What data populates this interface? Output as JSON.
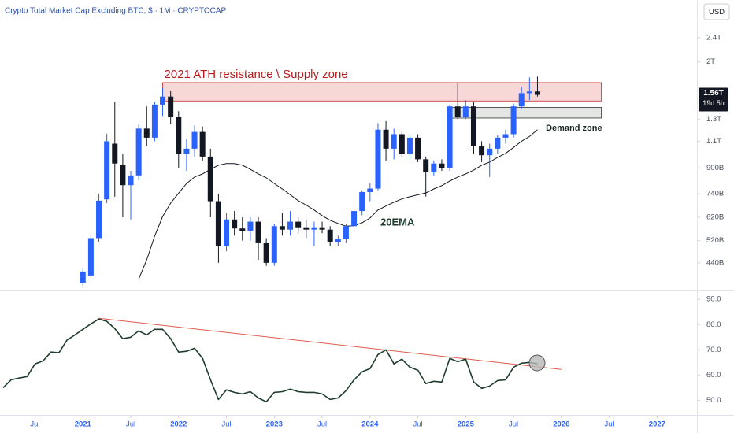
{
  "chart_data": [
    {
      "type": "candlestick",
      "title": "Crypto Total Market Cap Excluding BTC, $ · 1M · CRYPTOCAP",
      "currency": "USD",
      "log_scale": true,
      "up_color": "#2962ff",
      "down_color": "#131722",
      "x": [
        "2021-01",
        "2021-02",
        "2021-03",
        "2021-04",
        "2021-05",
        "2021-06",
        "2021-07",
        "2021-08",
        "2021-09",
        "2021-10",
        "2021-11",
        "2021-12",
        "2022-01",
        "2022-02",
        "2022-03",
        "2022-04",
        "2022-05",
        "2022-06",
        "2022-07",
        "2022-08",
        "2022-09",
        "2022-10",
        "2022-11",
        "2022-12",
        "2023-01",
        "2023-02",
        "2023-03",
        "2023-04",
        "2023-05",
        "2023-06",
        "2023-07",
        "2023-08",
        "2023-09",
        "2023-10",
        "2023-11",
        "2023-12",
        "2024-01",
        "2024-02",
        "2024-03",
        "2024-04",
        "2024-05",
        "2024-06",
        "2024-07",
        "2024-08",
        "2024-09",
        "2024-10",
        "2024-11",
        "2024-12",
        "2025-01",
        "2025-02",
        "2025-03",
        "2025-04",
        "2025-05",
        "2025-06",
        "2025-07",
        "2025-08",
        "2025-09",
        "2025-10"
      ],
      "open": [
        378,
        400,
        530,
        710,
        1080,
        918,
        790,
        850,
        1210,
        1130,
        1450,
        1540,
        1320,
        1000,
        1040,
        1180,
        980,
        700,
        500,
        610,
        570,
        560,
        600,
        510,
        440,
        580,
        565,
        600,
        575,
        565,
        575,
        565,
        515,
        525,
        580,
        650,
        750,
        770,
        1200,
        1040,
        1160,
        1000,
        1130,
        960,
        870,
        930,
        900,
        1430,
        1320,
        1430,
        1060,
        990,
        1040,
        1130,
        1160,
        1430,
        1580,
        1600
      ],
      "high": [
        424,
        545,
        740,
        1164,
        1475,
        1000,
        880,
        1250,
        1430,
        1480,
        1640,
        1610,
        1380,
        1120,
        1240,
        1230,
        1040,
        740,
        640,
        650,
        620,
        620,
        620,
        530,
        590,
        640,
        650,
        620,
        610,
        600,
        600,
        580,
        540,
        590,
        660,
        760,
        800,
        1260,
        1280,
        1210,
        1190,
        1150,
        1160,
        980,
        950,
        960,
        1450,
        1700,
        1500,
        1480,
        1100,
        1080,
        1150,
        1200,
        1460,
        1660,
        1780,
        1790
      ],
      "low": [
        370,
        390,
        515,
        690,
        724,
        620,
        610,
        820,
        1060,
        1100,
        1330,
        1250,
        900,
        880,
        980,
        950,
        620,
        440,
        480,
        540,
        520,
        520,
        450,
        430,
        430,
        540,
        540,
        550,
        530,
        500,
        550,
        500,
        500,
        510,
        570,
        630,
        700,
        760,
        950,
        960,
        980,
        960,
        940,
        725,
        850,
        880,
        880,
        1300,
        1300,
        1000,
        940,
        840,
        1000,
        1080,
        1130,
        1400,
        1500,
        1540
      ],
      "close": [
        412,
        530,
        703,
        1100,
        930,
        790,
        850,
        1210,
        1130,
        1450,
        1540,
        1320,
        1000,
        1040,
        1180,
        980,
        700,
        500,
        610,
        570,
        560,
        600,
        510,
        440,
        580,
        565,
        600,
        575,
        565,
        575,
        565,
        515,
        525,
        580,
        650,
        750,
        770,
        1200,
        1040,
        1160,
        1000,
        1130,
        960,
        870,
        930,
        900,
        1430,
        1320,
        1430,
        1060,
        990,
        1040,
        1130,
        1160,
        1430,
        1580,
        1600,
        1560
      ],
      "ema": {
        "name": "20EMA",
        "color": "#131722",
        "values": [
          null,
          null,
          null,
          null,
          null,
          null,
          null,
          389,
          450,
          538,
          624,
          690,
          744,
          800,
          840,
          860,
          890,
          918,
          930,
          930,
          918,
          890,
          860,
          835,
          800,
          768,
          735,
          703,
          680,
          655,
          628,
          606,
          592,
          580,
          582,
          595,
          617,
          655,
          675,
          695,
          712,
          724,
          735,
          745,
          768,
          787,
          815,
          840,
          860,
          885,
          918,
          940,
          974,
          1004,
          1050,
          1100,
          1140,
          1200
        ]
      },
      "zones": [
        {
          "label": "2021 ATH resistance \\ Supply zone",
          "x": [
            "2021-11",
            "2026-06"
          ],
          "range": [
            1490,
            1711
          ],
          "color": "#f8d7d7",
          "border": "#c62828",
          "text_color": "#b71c1c"
        },
        {
          "label": "Demand zone",
          "x": [
            "2024-11",
            "2026-06"
          ],
          "range": [
            1310,
            1420
          ],
          "color": "#e4e6e4",
          "border": "#333333",
          "text_color": "#1b2a22"
        }
      ],
      "last_price": {
        "value": 1560,
        "label": "1.56T"
      },
      "countdown": "19d 5h",
      "ylim": [
        355,
        3190
      ],
      "yticks": [
        {
          "value": 2400,
          "label": "2.4T"
        },
        {
          "value": 2000,
          "label": "2T"
        },
        {
          "value": 1300,
          "label": "1.3T"
        },
        {
          "value": 1100,
          "label": "1.1T"
        },
        {
          "value": 900,
          "label": "900B"
        },
        {
          "value": 740,
          "label": "740B"
        },
        {
          "value": 620,
          "label": "620B"
        },
        {
          "value": 520,
          "label": "520B"
        },
        {
          "value": 440,
          "label": "440B"
        }
      ],
      "xlim": [
        "2020-03",
        "2027-06"
      ],
      "xticks": [
        {
          "value": "2020-07",
          "label": "Jul"
        },
        {
          "value": "2021-01",
          "label": "2021"
        },
        {
          "value": "2021-07",
          "label": "Jul"
        },
        {
          "value": "2022-01",
          "label": "2022"
        },
        {
          "value": "2022-07",
          "label": "Jul"
        },
        {
          "value": "2023-01",
          "label": "2023"
        },
        {
          "value": "2023-07",
          "label": "Jul"
        },
        {
          "value": "2024-01",
          "label": "2024"
        },
        {
          "value": "2024-07",
          "label": "Jul"
        },
        {
          "value": "2025-01",
          "label": "2025"
        },
        {
          "value": "2025-07",
          "label": "Jul"
        },
        {
          "value": "2026-01",
          "label": "2026"
        },
        {
          "value": "2026-07",
          "label": "Jul"
        },
        {
          "value": "2027-01",
          "label": "2027"
        }
      ]
    },
    {
      "type": "line",
      "color": "#1e3d2c",
      "x": [
        "2020-03",
        "2020-04",
        "2020-05",
        "2020-06",
        "2020-07",
        "2020-08",
        "2020-09",
        "2020-10",
        "2020-11",
        "2020-12",
        "2021-01",
        "2021-02",
        "2021-03",
        "2021-04",
        "2021-05",
        "2021-06",
        "2021-07",
        "2021-08",
        "2021-09",
        "2021-10",
        "2021-11",
        "2021-12",
        "2022-01",
        "2022-02",
        "2022-03",
        "2022-04",
        "2022-05",
        "2022-06",
        "2022-07",
        "2022-08",
        "2022-09",
        "2022-10",
        "2022-11",
        "2022-12",
        "2023-01",
        "2023-02",
        "2023-03",
        "2023-04",
        "2023-05",
        "2023-06",
        "2023-07",
        "2023-08",
        "2023-09",
        "2023-10",
        "2023-11",
        "2023-12",
        "2024-01",
        "2024-02",
        "2024-03",
        "2024-04",
        "2024-05",
        "2024-06",
        "2024-07",
        "2024-08",
        "2024-09",
        "2024-10",
        "2024-11",
        "2024-12",
        "2025-01",
        "2025-02",
        "2025-03",
        "2025-04",
        "2025-05",
        "2025-06",
        "2025-07",
        "2025-08",
        "2025-09",
        "2025-10"
      ],
      "values": [
        55,
        58.1,
        58.8,
        59.4,
        64.4,
        65.6,
        69.1,
        68.8,
        73.8,
        75.9,
        78.1,
        80.3,
        82.2,
        81.3,
        78.4,
        74.4,
        75,
        77.5,
        75.9,
        78.1,
        78.1,
        74.4,
        69.1,
        69.4,
        70.6,
        66.6,
        58.1,
        50.3,
        54.1,
        53.1,
        52.5,
        53.4,
        50.9,
        49.4,
        53.1,
        53.4,
        54.4,
        53.4,
        53.1,
        53.1,
        52.5,
        50.3,
        50.9,
        53.8,
        58.1,
        61.3,
        62.5,
        68.1,
        70,
        64.4,
        66.3,
        63.1,
        61.9,
        56.6,
        57.5,
        57.2,
        66.6,
        65.3,
        66.3,
        57.2,
        54.7,
        55.6,
        57.8,
        58.1,
        63.1,
        64.7,
        65,
        64.4
      ],
      "trendline": {
        "x": [
          "2021-03",
          "2026-01"
        ],
        "values": [
          82.5,
          62.2
        ],
        "color": "#e05a4f"
      },
      "ylim": [
        44.5,
        93.5
      ],
      "yticks": [
        {
          "value": 90,
          "label": "90.0"
        },
        {
          "value": 80,
          "label": "80.0"
        },
        {
          "value": 70,
          "label": "70.0"
        },
        {
          "value": 60,
          "label": "60.0"
        },
        {
          "value": 50,
          "label": "50.0"
        }
      ]
    }
  ]
}
